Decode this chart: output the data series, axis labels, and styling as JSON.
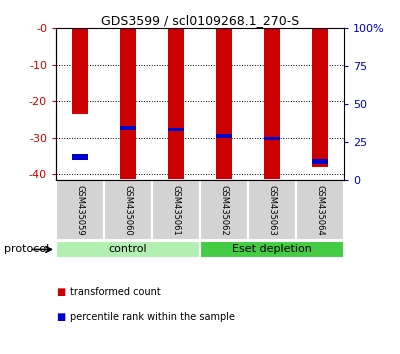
{
  "title": "GDS3599 / scl0109268.1_270-S",
  "samples": [
    "GSM435059",
    "GSM435060",
    "GSM435061",
    "GSM435062",
    "GSM435063",
    "GSM435064"
  ],
  "red_bar_top": [
    0,
    0,
    0,
    0,
    0,
    0
  ],
  "red_bar_bottom": [
    -23.5,
    -41.2,
    -41.2,
    -41.2,
    -41.2,
    -38.0
  ],
  "blue_bar_top": [
    -34.5,
    -26.8,
    -27.2,
    -28.8,
    -29.8,
    -35.8
  ],
  "blue_bar_bottom": [
    -36.0,
    -27.8,
    -28.2,
    -30.0,
    -30.5,
    -37.2
  ],
  "ylim_left": [
    -41.5,
    0
  ],
  "yticks_left": [
    0,
    -10,
    -20,
    -30,
    -40
  ],
  "ytick_labels_left": [
    "-0",
    "-10",
    "-20",
    "-30",
    "-40"
  ],
  "right_pct_ticks": [
    100,
    75,
    50,
    25,
    0
  ],
  "right_pct_labels": [
    "100%",
    "75",
    "50",
    "25",
    "0"
  ],
  "ylabel_left_color": "#cc0000",
  "ylabel_right_color": "#0000cc",
  "groups": [
    {
      "label": "control",
      "samples": [
        0,
        1,
        2
      ],
      "color": "#b2f0b2"
    },
    {
      "label": "Eset depletion",
      "samples": [
        3,
        4,
        5
      ],
      "color": "#44cc44"
    }
  ],
  "protocol_label": "protocol",
  "legend": [
    {
      "label": "transformed count",
      "color": "#cc0000"
    },
    {
      "label": "percentile rank within the sample",
      "color": "#0000cc"
    }
  ],
  "bar_color_red": "#cc0000",
  "bar_color_blue": "#0000cc",
  "bar_width": 0.35,
  "grid_color": "black",
  "background_label": "#d3d3d3"
}
